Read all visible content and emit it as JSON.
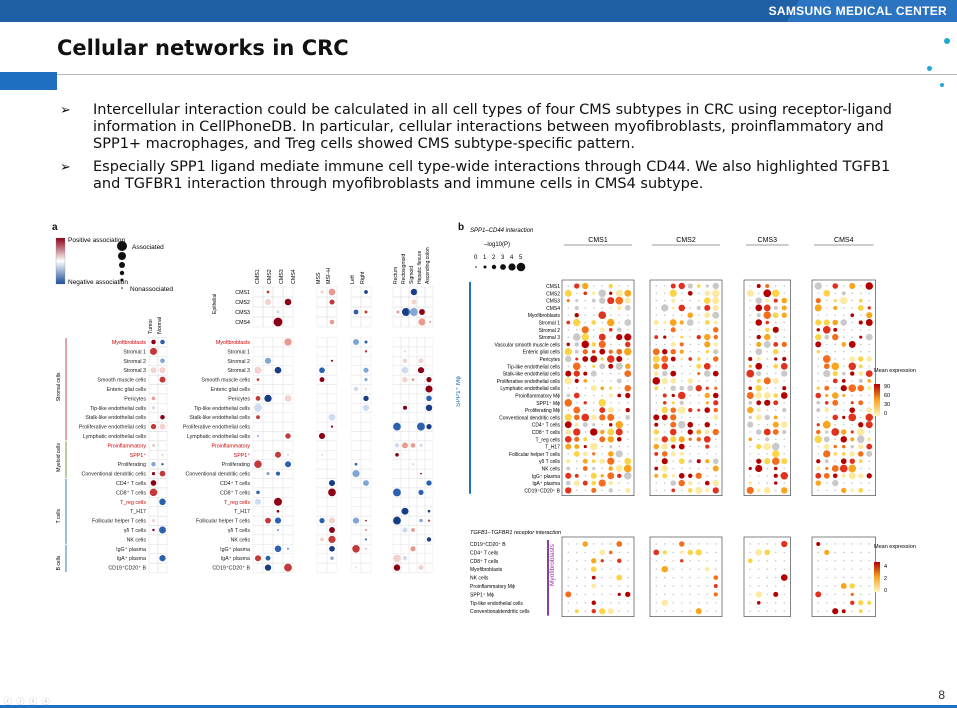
{
  "header": {
    "brand": "SAMSUNG MEDICAL CENTER"
  },
  "slide": {
    "title": "Cellular networks in CRC",
    "page_number": "8",
    "bullets": [
      "Intercellular interaction could be calculated in all cell types of four CMS subtypes in CRC using receptor-ligand information in CellPhoneDB. In particular, cellular interactions between myofibroblasts, proinflammatory and SPP1+ macrophages, and Treg cells showed CMS subtype-specific pattern.",
      "Especially SPP1 ligand mediate immune cell type-wide interactions through CD44. We also highlighted TGFB1 and TGFBR1 interaction through myofibroblasts and immune cells in CMS4 subtype."
    ],
    "colors": {
      "accent": "#1f6fc2",
      "brand_bar": "#1f5fa6",
      "dot": "#20a9d6"
    }
  },
  "figure_a": {
    "letter": "a",
    "legend": {
      "positive": "Positive association",
      "negative": "Negative association",
      "associated": "Associated",
      "nonassociated": "Nonassociated"
    },
    "col_labels_1": [
      "Tumor",
      "Normal"
    ],
    "col_labels_2": [
      "CMS1",
      "CMS2",
      "CMS3",
      "CMS4"
    ],
    "col_labels_3": [
      "MSS",
      "MSI–H"
    ],
    "col_labels_4": [
      "Left",
      "Right"
    ],
    "col_labels_5": [
      "Rectum",
      "Rectosigmoid",
      "Sigmoid",
      "Hepatic flexure",
      "Ascending colon"
    ],
    "epithelial_label": "Epithelial",
    "epithelial_rows": [
      "CMS1",
      "CMS2",
      "CMS3",
      "CMS4"
    ],
    "group_labels": [
      "Stromal cells",
      "Myeloid cells",
      "T cells",
      "B cells"
    ],
    "rows": [
      "Myofibroblasts",
      "Stromal 1",
      "Stromal 2",
      "Stromal 3",
      "Smooth muscle cells",
      "Enteric glial cells",
      "Pericytes",
      "Tip-like endothelial cells",
      "Stalk-like endothelial cells",
      "Proliferative endothelial cells",
      "Lymphatic endothelial cells",
      "Proinflammatory",
      "SPP1⁺",
      "Proliferating",
      "Conventional dendritic cells",
      "CD4⁺ T cells",
      "CD8⁺ T cells",
      "T_reg cells",
      "T_H17",
      "Follicular helper T cells",
      "γδ T cells",
      "NK cells",
      "IgG⁺ plasma",
      "IgA⁺ plasma",
      "CD19⁺CD20⁺ B"
    ]
  },
  "figure_b": {
    "letter": "b",
    "top_title": "SPP1–CD44 interaction",
    "size_legend_label": "–log10(P)",
    "size_legend_values": [
      "0",
      "1",
      "2",
      "3",
      "4",
      "5"
    ],
    "groups": [
      "CMS1",
      "CMS2",
      "CMS3",
      "CMS4"
    ],
    "side_label_top": "SPP1⁺ Mϕ",
    "side_label_bottom": "Myofibroblasts",
    "rows_top": [
      "CMS1",
      "CMS2",
      "CMS3",
      "CMS4",
      "Myofibroblasts",
      "Stromal 1",
      "Stromal 2",
      "Stromal 3",
      "Vascular smooth muscle cells",
      "Enteric glial cells",
      "Pericytes",
      "Tip-like endothelial cells",
      "Stalk-like endothelial cells",
      "Proliferative endothelial cells",
      "Lymphatic endothelial cells",
      "Proinflammatory Mϕ",
      "SPP1⁺ Mϕ",
      "Proliferating Mϕ",
      "Conventional dendritic cells",
      "CD4⁺ T cells",
      "CD8⁺ T cells",
      "T_reg cells",
      "T_H17",
      "Follicular helper T cells",
      "γδ T cells",
      "NK cells",
      "IgG⁺ plasma",
      "IgA⁺ plasma",
      "CD19⁺CD20⁺ B"
    ],
    "bottom_title": "TGFB1–TGFBR1 receptor interaction",
    "rows_bottom": [
      "CD19⁺CD20⁺ B",
      "CD4⁺ T cells",
      "CD8⁺ T cells",
      "Myofibroblasts",
      "NK cells",
      "Proinflammatory Mϕ",
      "SPP1⁺ Mϕ",
      "Tip-like endothelial cells",
      "Conventionaldendritic cells"
    ],
    "legend_top": {
      "title": "Mean expression",
      "ticks": [
        "90",
        "60",
        "30",
        "0"
      ]
    },
    "legend_bottom": {
      "title": "Mean expression",
      "ticks": [
        "4",
        "2",
        "0"
      ]
    }
  }
}
